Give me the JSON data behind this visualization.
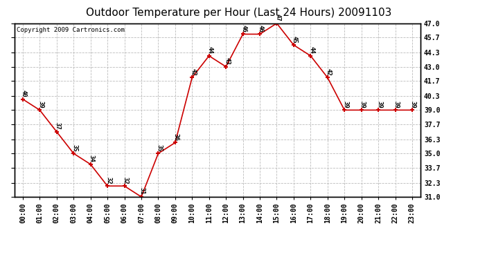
{
  "title": "Outdoor Temperature per Hour (Last 24 Hours) 20091103",
  "copyright": "Copyright 2009 Cartronics.com",
  "hours": [
    "00:00",
    "01:00",
    "02:00",
    "03:00",
    "04:00",
    "05:00",
    "06:00",
    "07:00",
    "08:00",
    "09:00",
    "10:00",
    "11:00",
    "12:00",
    "13:00",
    "14:00",
    "15:00",
    "16:00",
    "17:00",
    "18:00",
    "19:00",
    "20:00",
    "21:00",
    "22:00",
    "23:00"
  ],
  "temps": [
    40,
    39,
    37,
    35,
    34,
    32,
    32,
    31,
    35,
    36,
    42,
    44,
    43,
    46,
    46,
    47,
    45,
    44,
    42,
    39,
    39,
    39,
    39,
    39
  ],
  "line_color": "#cc0000",
  "marker_color": "#cc0000",
  "bg_color": "#ffffff",
  "grid_color": "#bbbbbb",
  "ylim_min": 31.0,
  "ylim_max": 47.0,
  "yticks": [
    31.0,
    32.3,
    33.7,
    35.0,
    36.3,
    37.7,
    39.0,
    40.3,
    41.7,
    43.0,
    44.3,
    45.7,
    47.0
  ],
  "ytick_labels": [
    "31.0",
    "32.3",
    "33.7",
    "35.0",
    "36.3",
    "37.7",
    "39.0",
    "40.3",
    "41.7",
    "43.0",
    "44.3",
    "45.7",
    "47.0"
  ],
  "title_fontsize": 11,
  "copyright_fontsize": 6.5,
  "label_fontsize": 6.5,
  "tick_fontsize": 7.0
}
